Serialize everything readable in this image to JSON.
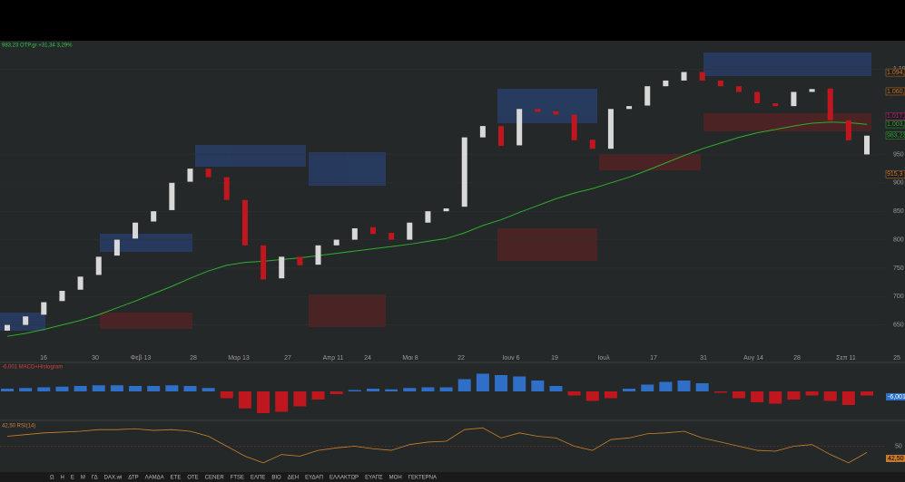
{
  "status_line": "983,23 ΟΤΡ.gr +31,34 3,29%",
  "price": {
    "ylim": [
      600,
      1150
    ],
    "yticks": [
      650,
      700,
      750,
      800,
      850,
      900,
      950,
      {
        "value": 1100,
        "label": "1.100"
      }
    ],
    "x_labels": [
      "16",
      "30",
      "Φεβ 13",
      "28",
      "Μαρ 13",
      "27",
      "Απρ 11",
      "24",
      "Μαι 8",
      "22",
      "Ιουν 6",
      "19",
      "Ιουλ",
      "17",
      "31",
      "Αυγ 14",
      "28",
      "Σεπ 11",
      "25"
    ],
    "open": [
      640,
      650,
      668,
      692,
      712,
      738,
      772,
      802,
      832,
      852,
      902,
      925,
      910,
      870,
      790,
      732,
      770,
      756,
      790,
      800,
      822,
      812,
      800,
      830,
      850,
      858,
      980,
      1000,
      966,
      1030,
      1026,
      1020,
      976,
      960,
      1030,
      1036,
      1070,
      1080,
      1095,
      1080,
      1070,
      1060,
      1040,
      1035,
      1060,
      1066,
      1010,
      950
    ],
    "close": [
      650,
      665,
      690,
      710,
      735,
      770,
      800,
      830,
      850,
      900,
      925,
      910,
      870,
      790,
      730,
      770,
      755,
      790,
      800,
      820,
      810,
      800,
      830,
      850,
      855,
      980,
      1000,
      965,
      1030,
      1025,
      1020,
      975,
      960,
      1030,
      1035,
      1070,
      1080,
      1095,
      1080,
      1070,
      1060,
      1040,
      1035,
      1060,
      1065,
      1010,
      975,
      983
    ],
    "ma": [
      630,
      635,
      642,
      650,
      658,
      668,
      680,
      692,
      705,
      718,
      732,
      745,
      755,
      760,
      762,
      765,
      768,
      772,
      776,
      780,
      784,
      788,
      792,
      797,
      802,
      812,
      825,
      835,
      848,
      860,
      872,
      882,
      890,
      900,
      910,
      922,
      935,
      948,
      960,
      970,
      980,
      988,
      994,
      1000,
      1005,
      1007,
      1006,
      1003
    ],
    "badges": [
      {
        "label": "1.094,1",
        "color": "#c97a2a",
        "value": 1094.1
      },
      {
        "label": "1.060,83",
        "color": "#c97a2a",
        "value": 1060.83
      },
      {
        "label": "1.017,29",
        "color": "#c0207a",
        "value": 1017.29
      },
      {
        "label": "1.003,27",
        "color": "#2faa3a",
        "value": 1003.27
      },
      {
        "label": "983,23",
        "color": "#2faa3a",
        "value": 983.23
      },
      {
        "label": "915,3",
        "color": "#c97a2a",
        "value": 915.3
      }
    ]
  },
  "macd": {
    "label": "-6,001 MACD+Histogram",
    "badge": "-6,001",
    "ylim": [
      -40,
      40
    ],
    "values": [
      4,
      5,
      6,
      7,
      8,
      9,
      9,
      8,
      8,
      9,
      8,
      5,
      -10,
      -25,
      -32,
      -30,
      -22,
      -12,
      -4,
      2,
      4,
      3,
      5,
      6,
      6,
      18,
      26,
      24,
      22,
      16,
      8,
      -6,
      -14,
      -10,
      4,
      10,
      14,
      16,
      12,
      -2,
      -10,
      -16,
      -18,
      -12,
      -6,
      -14,
      -20,
      -6
    ]
  },
  "rsi": {
    "label": "42,50 RSI(14)",
    "badge": "42,50",
    "ylim": [
      20,
      80
    ],
    "yticks": [
      50
    ],
    "values": [
      62,
      64,
      66,
      67,
      68,
      70,
      70,
      71,
      69,
      70,
      68,
      62,
      50,
      38,
      30,
      40,
      38,
      45,
      48,
      50,
      47,
      45,
      52,
      55,
      56,
      70,
      72,
      60,
      66,
      62,
      60,
      50,
      45,
      58,
      60,
      65,
      66,
      68,
      60,
      55,
      50,
      45,
      44,
      50,
      52,
      40,
      30,
      42.5
    ]
  },
  "toolbar": [
    "Ω",
    "H",
    "Ε",
    "Μ",
    "ΓΔ",
    "DAX.wi",
    "ΔΤΡ",
    "ΛΑΜΔΑ",
    "ΕΤΕ",
    "ΟΤΕ",
    "CENER",
    "FTSE",
    "ΕΛΠΕ",
    "BIO",
    "ΔΕΗ",
    "ΕΥΔΑΠ",
    "ΕΛΛΑΚΤΩΡ",
    "ΕΥΑΠΣ",
    "ΜΟΗ",
    "ΓΕΚΤΕΡΝΑ"
  ]
}
